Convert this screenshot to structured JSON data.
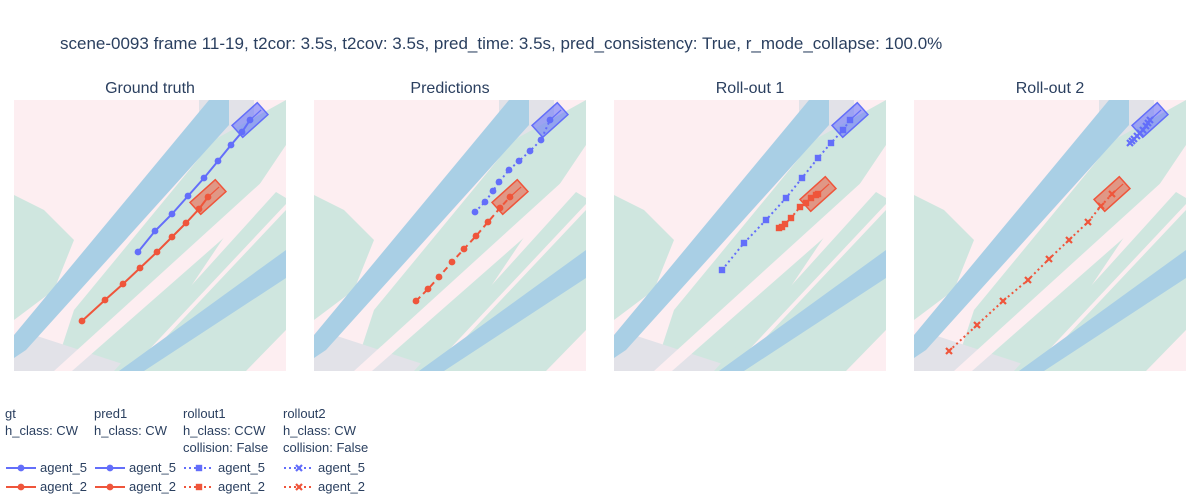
{
  "title": "scene-0093 frame 11-19, t2cor: 3.5s, t2cov: 3.5s, pred_time: 3.5s, pred_consistency: True, r_mode_collapse: 100.0%",
  "colors": {
    "agent_5": "#636efa",
    "agent_2": "#ef553b",
    "lane_blue": "#a9cfe5",
    "lane_green": "#cfe6df",
    "pink": "#fdeef1",
    "gray": "#e2e2e8"
  },
  "legend": [
    {
      "group": "gt",
      "h_class": "h_class: CW",
      "collision": "",
      "style": "solid",
      "marker": "circle",
      "entries": [
        "agent_5",
        "agent_2"
      ]
    },
    {
      "group": "pred1",
      "h_class": "h_class: CW",
      "collision": "",
      "style": "solid",
      "marker": "circle",
      "entries": [
        "agent_5",
        "agent_2"
      ]
    },
    {
      "group": "rollout1",
      "h_class": "h_class: CCW",
      "collision": "collision: False",
      "style": "dot",
      "marker": "square",
      "entries": [
        "agent_5",
        "agent_2"
      ]
    },
    {
      "group": "rollout2",
      "h_class": "h_class: CW",
      "collision": "collision: False",
      "style": "dot",
      "marker": "x",
      "entries": [
        "agent_5",
        "agent_2"
      ]
    }
  ],
  "chart_data": [
    {
      "type": "scatter",
      "title": "Ground truth",
      "series": [
        {
          "name": "agent_5",
          "line": "solid",
          "marker": "circle",
          "x": [
            138,
            155,
            172,
            188,
            204,
            218,
            231,
            242,
            250
          ],
          "y": [
            252,
            231,
            214,
            196,
            178,
            161,
            145,
            132,
            120
          ]
        },
        {
          "name": "agent_2",
          "line": "solid",
          "marker": "circle",
          "x": [
            82,
            105,
            123,
            140,
            157,
            172,
            186,
            199,
            208
          ],
          "y": [
            321,
            300,
            284,
            268,
            252,
            237,
            223,
            209,
            197
          ]
        }
      ]
    },
    {
      "type": "scatter",
      "title": "Predictions",
      "series": [
        {
          "name": "agent_5",
          "line": "dot",
          "marker": "circle",
          "x": [
            475,
            485,
            493,
            499,
            509,
            519,
            530,
            541,
            550
          ],
          "y": [
            212,
            202,
            191,
            182,
            170,
            161,
            151,
            140,
            120
          ]
        },
        {
          "name": "agent_2",
          "line": "dash",
          "marker": "circle",
          "x": [
            416,
            428,
            439,
            452,
            464,
            476,
            488,
            500,
            510
          ],
          "y": [
            301,
            289,
            277,
            262,
            249,
            236,
            222,
            208,
            197
          ]
        }
      ]
    },
    {
      "type": "scatter",
      "title": "Roll-out 1",
      "series": [
        {
          "name": "agent_5",
          "line": "dot",
          "marker": "square",
          "x": [
            722,
            744,
            766,
            786,
            802,
            818,
            831,
            843,
            850
          ],
          "y": [
            270,
            243,
            220,
            198,
            178,
            158,
            143,
            130,
            120
          ]
        },
        {
          "name": "agent_2",
          "line": "dot",
          "marker": "square",
          "x": [
            779,
            782,
            785,
            791,
            800,
            806,
            811,
            816,
            818
          ],
          "y": [
            228,
            227,
            224,
            218,
            207,
            203,
            198,
            195,
            194
          ]
        }
      ]
    },
    {
      "type": "scatter",
      "title": "Roll-out 2",
      "series": [
        {
          "name": "agent_5",
          "line": "dot",
          "marker": "x",
          "x": [
            1130,
            1132,
            1134,
            1137,
            1140,
            1143,
            1146,
            1148,
            1150
          ],
          "y": [
            143,
            141,
            139,
            136,
            133,
            130,
            126,
            123,
            120
          ]
        },
        {
          "name": "agent_2",
          "line": "dot",
          "marker": "x",
          "x": [
            949,
            977,
            1003,
            1028,
            1049,
            1069,
            1088,
            1101,
            1112
          ],
          "y": [
            351,
            325,
            301,
            280,
            259,
            240,
            222,
            206,
            194
          ]
        }
      ]
    }
  ]
}
